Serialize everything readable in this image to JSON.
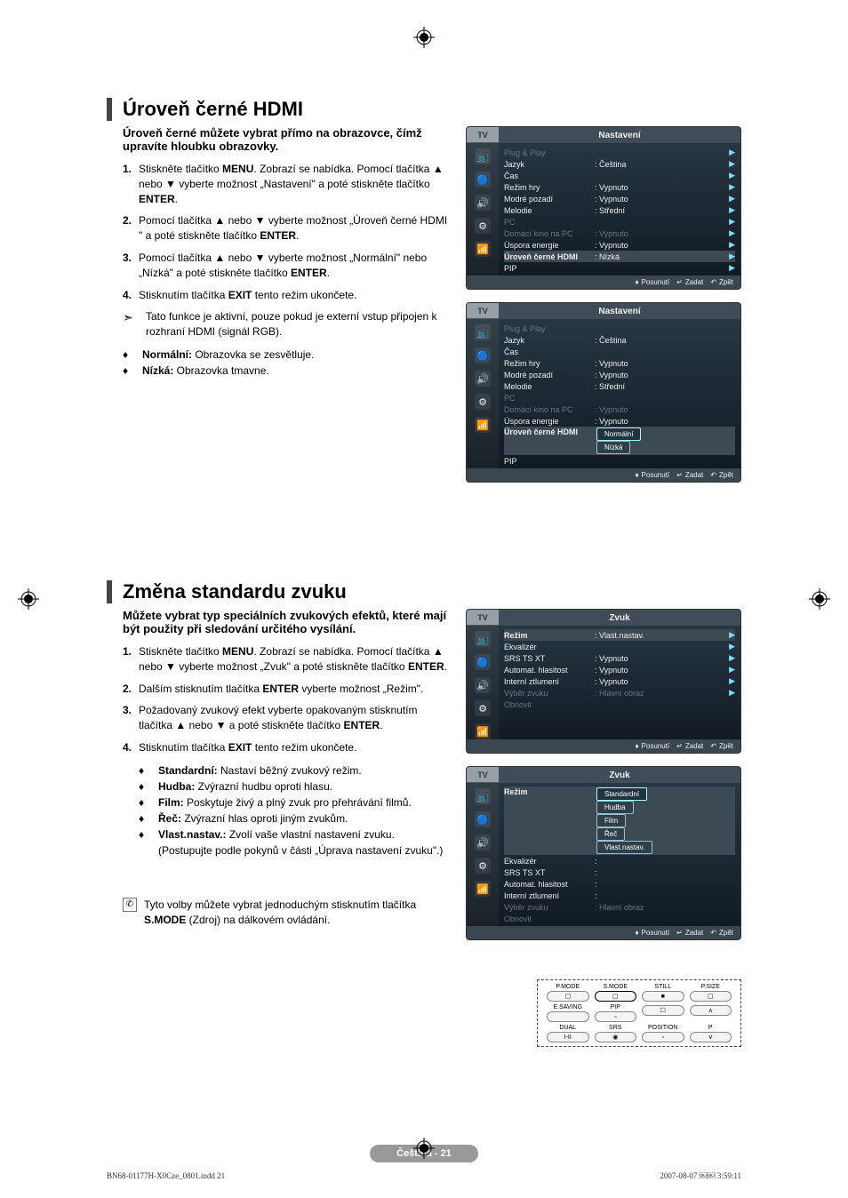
{
  "print": {
    "file": "BN68-01177H-X0Cze_0801.indd   21",
    "date": "2007-08-07   ￼￼ 3:59:11"
  },
  "footer": {
    "text": "Čeština - 21"
  },
  "sec1": {
    "title": "Úroveň černé HDMI",
    "intro": "Úroveň černé můžete vybrat přímo na obrazovce, čímž upravíte hloubku obrazovky.",
    "steps": [
      "Stiskněte tlačítko MENU. Zobrazí se nabídka. Pomocí tlačítka ▲ nebo ▼ vyberte možnost „Nastavení\" a poté stiskněte tlačítko ENTER.",
      "Pomocí tlačítka ▲ nebo ▼ vyberte možnost „Úroveň černé HDMI \" a poté stiskněte tlačítko ENTER.",
      "Pomocí tlačítka ▲ nebo ▼ vyberte možnost „Normální\" nebo „Nízká\" a poté stiskněte tlačítko ENTER.",
      "Stisknutím tlačítka EXIT tento režim ukončete."
    ],
    "note": "Tato funkce je aktivní, pouze pokud je externí vstup připojen k rozhraní HDMI (signál RGB).",
    "bullets": [
      {
        "term": "Normální:",
        "desc": " Obrazovka se zesvětluje."
      },
      {
        "term": "Nízká:",
        "desc": " Obrazovka tmavne."
      }
    ]
  },
  "sec2": {
    "title": "Změna standardu zvuku",
    "intro": "Můžete vybrat typ speciálních zvukových efektů, které mají být použity při sledování určitého vysílání.",
    "steps": [
      "Stiskněte tlačítko MENU. Zobrazí se nabídka. Pomocí tlačítka ▲ nebo ▼ vyberte možnost „Zvuk\" a poté stiskněte tlačítko ENTER.",
      "Dalším stisknutím tlačítka ENTER vyberte možnost „Režim\".",
      "Požadovaný zvukový efekt vyberte opakovaným stisknutím tlačítka ▲ nebo ▼ a poté stiskněte tlačítko ENTER.",
      "Stisknutím tlačítka EXIT tento režim ukončete."
    ],
    "bullets": [
      {
        "term": "Standardní:",
        "desc": " Nastaví běžný zvukový režim."
      },
      {
        "term": "Hudba:",
        "desc": " Zvýrazní hudbu oproti hlasu."
      },
      {
        "term": "Film:",
        "desc": " Poskytuje živý a plný zvuk pro přehrávání filmů."
      },
      {
        "term": "Řeč:",
        "desc": " Zvýrazní hlas oproti jiným zvukům."
      },
      {
        "term": "Vlast.nastav.:",
        "desc": " Zvolí vaše vlastní nastavení zvuku. (Postupujte podle pokynů v části „Úprava nastavení zvuku\".)"
      }
    ],
    "tip": "Tyto volby můžete vybrat jednoduchým stisknutím tlačítka S.MODE (Zdroj) na dálkovém ovládání."
  },
  "osd": {
    "tv": "TV",
    "footer": {
      "move": "Posunutí",
      "enter": "Zadat",
      "back": "Zpět"
    },
    "settings_title": "Nastavení",
    "zvuk_title": "Zvuk",
    "menu1": {
      "rows": [
        {
          "l": "Plug & Play",
          "v": "",
          "dim": true,
          "arr": true
        },
        {
          "l": "Jazyk",
          "v": ": Čeština",
          "arr": true
        },
        {
          "l": "Čas",
          "v": "",
          "arr": true
        },
        {
          "l": "Režim hry",
          "v": ": Vypnuto",
          "arr": true
        },
        {
          "l": "Modré pozadí",
          "v": ": Vypnuto",
          "arr": true
        },
        {
          "l": "Melodie",
          "v": ": Střední",
          "arr": true
        },
        {
          "l": "PC",
          "v": "",
          "dim": true,
          "arr": true
        },
        {
          "l": "Domácí kino na PC",
          "v": ": Vypnuto",
          "dim": true,
          "arr": true
        },
        {
          "l": "Úspora energie",
          "v": ": Vypnuto",
          "arr": true
        },
        {
          "l": "Úroveň černé HDMI",
          "v": ": Nízká",
          "hl": true,
          "arr": true
        },
        {
          "l": "PIP",
          "v": "",
          "arr": true
        }
      ]
    },
    "menu2": {
      "rows": [
        {
          "l": "Plug & Play",
          "v": "",
          "dim": true
        },
        {
          "l": "Jazyk",
          "v": ": Čeština"
        },
        {
          "l": "Čas",
          "v": ""
        },
        {
          "l": "Režim hry",
          "v": ": Vypnuto"
        },
        {
          "l": "Modré pozadí",
          "v": ": Vypnuto"
        },
        {
          "l": "Melodie",
          "v": ": Střední"
        },
        {
          "l": "PC",
          "v": "",
          "dim": true
        },
        {
          "l": "Domácí kino na PC",
          "v": ": Vypnuto",
          "dim": true
        },
        {
          "l": "Úspora energie",
          "v": ": Vypnuto"
        },
        {
          "l": "Úroveň černé HDMI",
          "v": "",
          "hl": true,
          "pills": [
            "Normální",
            "Nízká"
          ],
          "active_pill": 0
        },
        {
          "l": "PIP",
          "v": ""
        }
      ]
    },
    "menu3": {
      "rows": [
        {
          "l": "Režim",
          "v": ": Vlast.nastav.",
          "hl": true,
          "arr": true
        },
        {
          "l": "Ekvalizér",
          "v": "",
          "arr": true
        },
        {
          "l": "SRS TS XT",
          "v": ": Vypnuto",
          "arr": true
        },
        {
          "l": "Automat. hlasitost",
          "v": ": Vypnuto",
          "arr": true
        },
        {
          "l": "Interní ztlumení",
          "v": ": Vypnuto",
          "arr": true
        },
        {
          "l": "Výběr zvuku",
          "v": ": Hlavní obraz",
          "dim": true,
          "arr": true
        },
        {
          "l": "Obnovit",
          "v": "",
          "dim": true
        }
      ]
    },
    "menu4": {
      "rows": [
        {
          "l": "Režim",
          "v": "",
          "hl": true,
          "pills": [
            "Standardní",
            "Hudba",
            "Film",
            "Řeč",
            "Vlast.nastav."
          ],
          "active_pill": 0
        },
        {
          "l": "Ekvalizér",
          "v": ":"
        },
        {
          "l": "SRS TS XT",
          "v": ":"
        },
        {
          "l": "Automat. hlasitost",
          "v": ":"
        },
        {
          "l": "Interní ztlumení",
          "v": ":"
        },
        {
          "l": "Výběr zvuku",
          "v": ": Hlavní obraz",
          "dim": true
        },
        {
          "l": "Obnovit",
          "v": "",
          "dim": true
        }
      ]
    }
  },
  "remote": {
    "cells": [
      {
        "t": "P.MODE",
        "b": "▢"
      },
      {
        "t": "S.MODE",
        "b": "▢",
        "hl": true
      },
      {
        "t": "STILL",
        "b": "■"
      },
      {
        "t": "P.SIZE",
        "b": "▢"
      },
      {
        "t": "E.SAVING",
        "b": ""
      },
      {
        "t": "PIP",
        "b": "▫"
      },
      {
        "t": "",
        "b": "☐"
      },
      {
        "t": "",
        "b": "∧"
      },
      {
        "t": "DUAL",
        "b": "I-II"
      },
      {
        "t": "SRS",
        "b": "◉"
      },
      {
        "t": "POSITION",
        "b": "▫"
      },
      {
        "t": "P",
        "b": "∨"
      }
    ]
  }
}
